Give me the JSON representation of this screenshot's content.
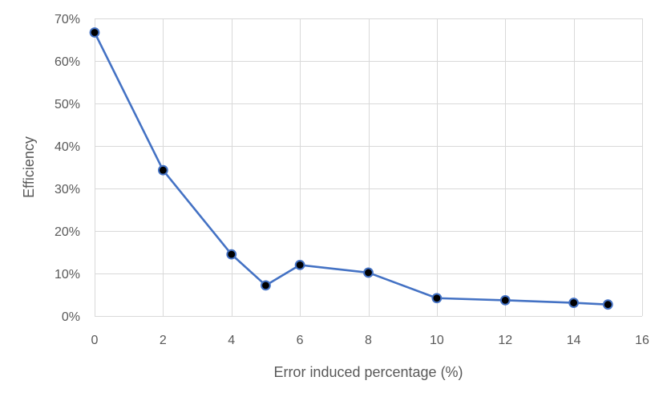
{
  "chart_data": {
    "type": "line",
    "title": "",
    "xlabel": "Error induced percentage (%)",
    "ylabel": "Efficiency",
    "xlim": [
      0,
      16
    ],
    "ylim": [
      0,
      0.7
    ],
    "x_ticks": [
      0,
      2,
      4,
      6,
      8,
      10,
      12,
      14,
      16
    ],
    "x_tick_labels": [
      "0",
      "2",
      "4",
      "6",
      "8",
      "10",
      "12",
      "14",
      "16"
    ],
    "y_ticks": [
      0,
      0.1,
      0.2,
      0.3,
      0.4,
      0.5,
      0.6,
      0.7
    ],
    "y_tick_labels": [
      "0%",
      "10%",
      "20%",
      "30%",
      "40%",
      "50%",
      "60%",
      "70%"
    ],
    "grid": true,
    "legend": false,
    "series": [
      {
        "x": [
          0,
          2,
          4,
          5,
          6,
          8,
          10,
          12,
          14,
          15
        ],
        "values": [
          0.667,
          0.343,
          0.145,
          0.072,
          0.12,
          0.102,
          0.042,
          0.037,
          0.031,
          0.027
        ]
      }
    ],
    "colors": {
      "line": "#4472c4",
      "marker_fill": "#000000",
      "marker_edge": "#4472c4",
      "grid": "#d9d9d9",
      "text": "#595959"
    }
  }
}
